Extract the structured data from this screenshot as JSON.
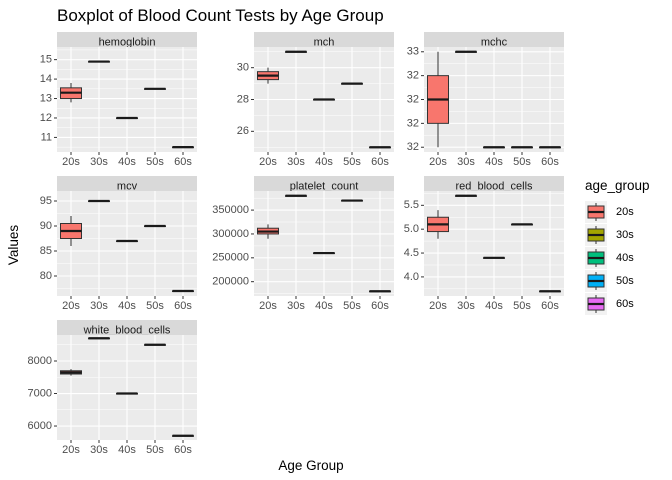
{
  "chart_data": {
    "type": "boxplot",
    "title": "Boxplot of Blood Count Tests by Age Group",
    "xlabel": "Age Group",
    "ylabel": "Values",
    "categories": [
      "20s",
      "30s",
      "40s",
      "50s",
      "60s"
    ],
    "legend": {
      "title": "age_group",
      "placement": "right",
      "entries": [
        "20s",
        "30s",
        "40s",
        "50s",
        "60s"
      ]
    },
    "colors": {
      "20s": "#F8766D",
      "30s": "#A3A500",
      "40s": "#00BF7D",
      "50s": "#00B0F6",
      "60s": "#E76BF3"
    },
    "panels": [
      {
        "name": "hemoglobin",
        "ylim": [
          10.25,
          15.65
        ],
        "yticks": [
          11,
          12,
          13,
          14,
          15
        ],
        "ytick_labels": [
          "11",
          "12",
          "13",
          "14",
          "15"
        ],
        "boxes": [
          {
            "group": "20s",
            "min": 12.8,
            "q1": 13.0,
            "median": 13.3,
            "q3": 13.55,
            "max": 13.8
          },
          {
            "group": "30s",
            "min": 14.9,
            "q1": 14.9,
            "median": 14.9,
            "q3": 14.9,
            "max": 14.9
          },
          {
            "group": "40s",
            "min": 12.0,
            "q1": 12.0,
            "median": 12.0,
            "q3": 12.0,
            "max": 12.0
          },
          {
            "group": "50s",
            "min": 13.5,
            "q1": 13.5,
            "median": 13.5,
            "q3": 13.5,
            "max": 13.5
          },
          {
            "group": "60s",
            "min": 10.5,
            "q1": 10.5,
            "median": 10.5,
            "q3": 10.5,
            "max": 10.5
          }
        ]
      },
      {
        "name": "mch",
        "ylim": [
          24.7,
          31.3
        ],
        "yticks": [
          26,
          28,
          30
        ],
        "ytick_labels": [
          "26",
          "28",
          "30"
        ],
        "boxes": [
          {
            "group": "20s",
            "min": 29.0,
            "q1": 29.25,
            "median": 29.5,
            "q3": 29.75,
            "max": 30.0
          },
          {
            "group": "30s",
            "min": 31.0,
            "q1": 31.0,
            "median": 31.0,
            "q3": 31.0,
            "max": 31.0
          },
          {
            "group": "40s",
            "min": 28.0,
            "q1": 28.0,
            "median": 28.0,
            "q3": 28.0,
            "max": 28.0
          },
          {
            "group": "50s",
            "min": 29.0,
            "q1": 29.0,
            "median": 29.0,
            "q3": 29.0,
            "max": 29.0
          },
          {
            "group": "60s",
            "min": 25.0,
            "q1": 25.0,
            "median": 25.0,
            "q3": 25.0,
            "max": 25.0
          }
        ]
      },
      {
        "name": "mchc",
        "ylim": [
          31.95,
          33.05
        ],
        "yticks": [
          32.0,
          32.25,
          32.5,
          32.75,
          33.0
        ],
        "ytick_labels": [
          "32",
          "32",
          "32",
          "32",
          "33"
        ],
        "boxes": [
          {
            "group": "20s",
            "min": 32.0,
            "q1": 32.25,
            "median": 32.5,
            "q3": 32.75,
            "max": 33.0
          },
          {
            "group": "30s",
            "min": 33.0,
            "q1": 33.0,
            "median": 33.0,
            "q3": 33.0,
            "max": 33.0
          },
          {
            "group": "40s",
            "min": 32.0,
            "q1": 32.0,
            "median": 32.0,
            "q3": 32.0,
            "max": 32.0
          },
          {
            "group": "50s",
            "min": 32.0,
            "q1": 32.0,
            "median": 32.0,
            "q3": 32.0,
            "max": 32.0
          },
          {
            "group": "60s",
            "min": 32.0,
            "q1": 32.0,
            "median": 32.0,
            "q3": 32.0,
            "max": 32.0
          }
        ]
      },
      {
        "name": "mcv",
        "ylim": [
          76,
          97
        ],
        "yticks": [
          80,
          85,
          90,
          95
        ],
        "ytick_labels": [
          "80",
          "85",
          "90",
          "95"
        ],
        "boxes": [
          {
            "group": "20s",
            "min": 86.0,
            "q1": 87.5,
            "median": 89.0,
            "q3": 90.5,
            "max": 92.0
          },
          {
            "group": "30s",
            "min": 95.0,
            "q1": 95.0,
            "median": 95.0,
            "q3": 95.0,
            "max": 95.0
          },
          {
            "group": "40s",
            "min": 87.0,
            "q1": 87.0,
            "median": 87.0,
            "q3": 87.0,
            "max": 87.0
          },
          {
            "group": "50s",
            "min": 90.0,
            "q1": 90.0,
            "median": 90.0,
            "q3": 90.0,
            "max": 90.0
          },
          {
            "group": "60s",
            "min": 77.0,
            "q1": 77.0,
            "median": 77.0,
            "q3": 77.0,
            "max": 77.0
          }
        ]
      },
      {
        "name": "platelet_count",
        "ylim": [
          170000,
          390000
        ],
        "yticks": [
          200000,
          250000,
          300000,
          350000
        ],
        "ytick_labels": [
          "200000",
          "250000",
          "300000",
          "350000"
        ],
        "boxes": [
          {
            "group": "20s",
            "min": 290000,
            "q1": 300000,
            "median": 305000,
            "q3": 312000,
            "max": 320000
          },
          {
            "group": "30s",
            "min": 380000,
            "q1": 380000,
            "median": 380000,
            "q3": 380000,
            "max": 380000
          },
          {
            "group": "40s",
            "min": 260000,
            "q1": 260000,
            "median": 260000,
            "q3": 260000,
            "max": 260000
          },
          {
            "group": "50s",
            "min": 370000,
            "q1": 370000,
            "median": 370000,
            "q3": 370000,
            "max": 370000
          },
          {
            "group": "60s",
            "min": 180000,
            "q1": 180000,
            "median": 180000,
            "q3": 180000,
            "max": 180000
          }
        ]
      },
      {
        "name": "red_blood_cells",
        "ylim": [
          3.6,
          5.8
        ],
        "yticks": [
          4.0,
          4.5,
          5.0,
          5.5
        ],
        "ytick_labels": [
          "4.0",
          "4.5",
          "5.0",
          "5.5"
        ],
        "boxes": [
          {
            "group": "20s",
            "min": 4.8,
            "q1": 4.95,
            "median": 5.1,
            "q3": 5.25,
            "max": 5.4
          },
          {
            "group": "30s",
            "min": 5.7,
            "q1": 5.7,
            "median": 5.7,
            "q3": 5.7,
            "max": 5.7
          },
          {
            "group": "40s",
            "min": 4.4,
            "q1": 4.4,
            "median": 4.4,
            "q3": 4.4,
            "max": 4.4
          },
          {
            "group": "50s",
            "min": 5.1,
            "q1": 5.1,
            "median": 5.1,
            "q3": 5.1,
            "max": 5.1
          },
          {
            "group": "60s",
            "min": 3.7,
            "q1": 3.7,
            "median": 3.7,
            "q3": 3.7,
            "max": 3.7
          }
        ]
      },
      {
        "name": "white_blood_cells",
        "ylim": [
          5570,
          8800
        ],
        "yticks": [
          6000,
          7000,
          8000
        ],
        "ytick_labels": [
          "6000",
          "7000",
          "8000"
        ],
        "boxes": [
          {
            "group": "20s",
            "min": 7550,
            "q1": 7600,
            "median": 7650,
            "q3": 7700,
            "max": 7750
          },
          {
            "group": "30s",
            "min": 8700,
            "q1": 8700,
            "median": 8700,
            "q3": 8700,
            "max": 8700
          },
          {
            "group": "40s",
            "min": 7000,
            "q1": 7000,
            "median": 7000,
            "q3": 7000,
            "max": 7000
          },
          {
            "group": "50s",
            "min": 8500,
            "q1": 8500,
            "median": 8500,
            "q3": 8500,
            "max": 8500
          },
          {
            "group": "60s",
            "min": 5700,
            "q1": 5700,
            "median": 5700,
            "q3": 5700,
            "max": 5700
          }
        ]
      }
    ]
  }
}
